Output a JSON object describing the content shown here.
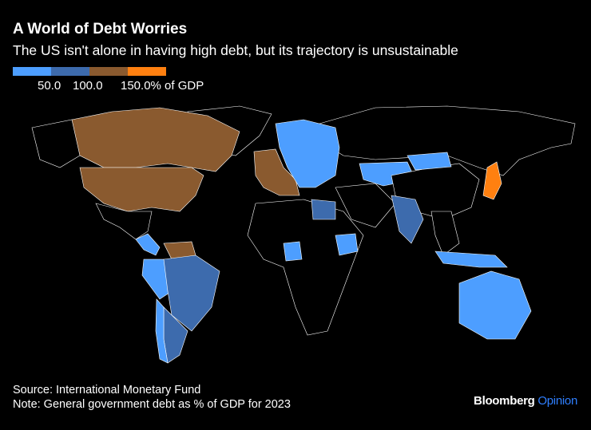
{
  "title": "A World of Debt Worries",
  "subtitle": "The US isn't alone in having high debt, but its trajectory is unsustainable",
  "legend": {
    "colors": [
      "#4d9eff",
      "#3d6bad",
      "#8a5a2f",
      "#ff8010"
    ],
    "labels": [
      "50.0",
      "100.0",
      "150.0% of GDP"
    ],
    "unit": "% of GDP"
  },
  "chart_data": {
    "type": "choropleth",
    "bins": [
      {
        "range": "<50",
        "color": "#4d9eff"
      },
      {
        "range": "50-100",
        "color": "#3d6bad"
      },
      {
        "range": "100-150",
        "color": "#8a5a2f"
      },
      {
        "range": ">150",
        "color": "#ff8010"
      }
    ],
    "no_data_color": "#000000",
    "regions": [
      {
        "name": "United States",
        "bin": "100-150"
      },
      {
        "name": "Canada",
        "bin": "100-150"
      },
      {
        "name": "Brazil",
        "bin": "50-100"
      },
      {
        "name": "Argentina",
        "bin": "50-100"
      },
      {
        "name": "Chile",
        "bin": "<50"
      },
      {
        "name": "Peru",
        "bin": "<50"
      },
      {
        "name": "Venezuela",
        "bin": "100-150"
      },
      {
        "name": "Central America",
        "bin": "<50"
      },
      {
        "name": "Europe West",
        "bin": "100-150"
      },
      {
        "name": "Europe North/East",
        "bin": "<50"
      },
      {
        "name": "Nigeria",
        "bin": "<50"
      },
      {
        "name": "Ethiopia",
        "bin": "<50"
      },
      {
        "name": "Egypt",
        "bin": "50-100"
      },
      {
        "name": "India",
        "bin": "50-100"
      },
      {
        "name": "Kazakhstan",
        "bin": "<50"
      },
      {
        "name": "Mongolia",
        "bin": "<50"
      },
      {
        "name": "Japan",
        "bin": ">150"
      },
      {
        "name": "Indonesia",
        "bin": "<50"
      },
      {
        "name": "Australia",
        "bin": "<50"
      }
    ]
  },
  "footer": {
    "source": "Source: International Monetary Fund",
    "note": "Note: General government debt as % of GDP for 2023",
    "brand": "Bloomberg",
    "brand_suffix": "Opinion"
  }
}
